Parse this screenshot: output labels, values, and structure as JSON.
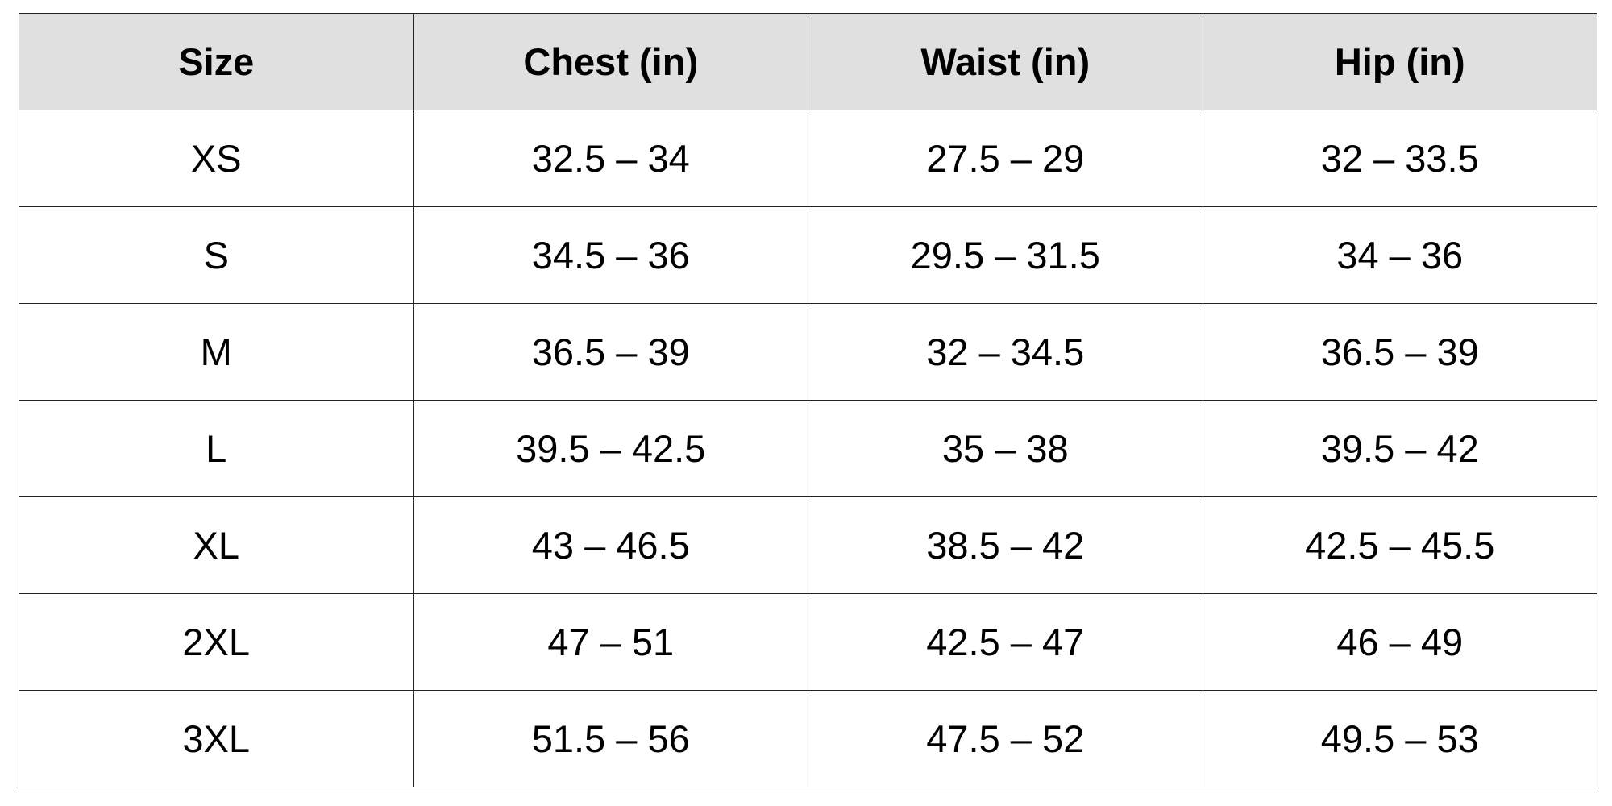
{
  "table": {
    "columns": [
      "Size",
      "Chest (in)",
      "Waist (in)",
      "Hip (in)"
    ],
    "rows": [
      [
        "XS",
        "32.5 – 34",
        "27.5 – 29",
        "32 – 33.5"
      ],
      [
        "S",
        "34.5 – 36",
        "29.5 – 31.5",
        "34 – 36"
      ],
      [
        "M",
        "36.5 – 39",
        "32 – 34.5",
        "36.5 – 39"
      ],
      [
        "L",
        "39.5 – 42.5",
        "35 – 38",
        "39.5 – 42"
      ],
      [
        "XL",
        "43 – 46.5",
        "38.5 – 42",
        "42.5 – 45.5"
      ],
      [
        "2XL",
        "47 – 51",
        "42.5 – 47",
        "46 – 49"
      ],
      [
        "3XL",
        "51.5 – 56",
        "47.5 – 52",
        "49.5 – 53"
      ]
    ]
  },
  "colors": {
    "header_background": "#e0e0e0",
    "border": "#222222",
    "text": "#000000",
    "background": "#ffffff"
  }
}
